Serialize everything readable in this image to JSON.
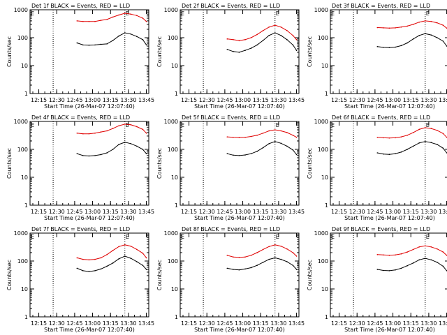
{
  "chart_data": {
    "type": "line",
    "panel_title_suffix": "BLACK = Events, RED = LLD",
    "ylabel": "Counts/sec",
    "xlabel": "Start Time (26-Mar-07 12:07:40)",
    "ylim": [
      1,
      1000
    ],
    "yscale": "log",
    "yticks": [
      "1",
      "10",
      "100",
      "1000"
    ],
    "xlim": [
      "12:07:40",
      "13:47:00"
    ],
    "xticks": [
      "12:15",
      "12:30",
      "12:45",
      "13:00",
      "13:15",
      "13:30",
      "13:45"
    ],
    "vertical_markers": [
      "12:27:00",
      "13:27:00"
    ],
    "marker_label": "E",
    "curve_times": [
      "12:47",
      "12:52",
      "12:57",
      "13:02",
      "13:07",
      "13:12",
      "13:17",
      "13:22",
      "13:27",
      "13:32",
      "13:37",
      "13:42",
      "13:45"
    ],
    "panels": [
      {
        "title": "Det 1f",
        "series": [
          {
            "name": "Events",
            "color": "#000000",
            "values": [
              65,
              55,
              54,
              55,
              58,
              60,
              80,
              115,
              150,
              135,
              110,
              85,
              55
            ]
          },
          {
            "name": "LLD",
            "color": "#e00000",
            "values": [
              400,
              380,
              380,
              380,
              420,
              450,
              550,
              650,
              750,
              700,
              620,
              500,
              380
            ]
          }
        ]
      },
      {
        "title": "Det 2f",
        "series": [
          {
            "name": "Events",
            "color": "#000000",
            "values": [
              38,
              32,
              30,
              35,
              42,
              55,
              80,
              120,
              150,
              120,
              85,
              55,
              35
            ]
          },
          {
            "name": "LLD",
            "color": "#e00000",
            "values": [
              90,
              85,
              78,
              85,
              100,
              130,
              180,
              240,
              280,
              240,
              180,
              120,
              85
            ]
          }
        ]
      },
      {
        "title": "Det 3f",
        "series": [
          {
            "name": "Events",
            "color": "#000000",
            "values": [
              48,
              45,
              44,
              46,
              52,
              65,
              90,
              120,
              140,
              125,
              100,
              75,
              50
            ]
          },
          {
            "name": "LLD",
            "color": "#e00000",
            "values": [
              230,
              225,
              220,
              225,
              240,
              260,
              300,
              360,
              400,
              380,
              340,
              280,
              220
            ]
          }
        ]
      },
      {
        "title": "Det 4f",
        "series": [
          {
            "name": "Events",
            "color": "#000000",
            "values": [
              70,
              60,
              58,
              60,
              65,
              75,
              100,
              150,
              180,
              160,
              130,
              100,
              70
            ]
          },
          {
            "name": "LLD",
            "color": "#e00000",
            "values": [
              380,
              360,
              360,
              380,
              420,
              460,
              560,
              700,
              800,
              760,
              650,
              520,
              380
            ]
          }
        ]
      },
      {
        "title": "Det 5f",
        "series": [
          {
            "name": "Events",
            "color": "#000000",
            "values": [
              70,
              62,
              60,
              63,
              70,
              85,
              115,
              160,
              190,
              165,
              130,
              95,
              65
            ]
          },
          {
            "name": "LLD",
            "color": "#e00000",
            "values": [
              280,
              270,
              265,
              270,
              290,
              320,
              380,
              460,
              500,
              460,
              400,
              320,
              270
            ]
          }
        ]
      },
      {
        "title": "Det 6f",
        "series": [
          {
            "name": "Events",
            "color": "#000000",
            "values": [
              75,
              68,
              66,
              70,
              80,
              100,
              130,
              170,
              190,
              175,
              150,
              110,
              75
            ]
          },
          {
            "name": "LLD",
            "color": "#e00000",
            "values": [
              270,
              260,
              255,
              260,
              280,
              320,
              400,
              520,
              600,
              560,
              480,
              370,
              270
            ]
          }
        ]
      },
      {
        "title": "Det 7f",
        "series": [
          {
            "name": "Events",
            "color": "#000000",
            "values": [
              55,
              45,
              42,
              45,
              52,
              65,
              85,
              120,
              150,
              125,
              95,
              70,
              50
            ]
          },
          {
            "name": "LLD",
            "color": "#e00000",
            "values": [
              130,
              115,
              110,
              115,
              130,
              170,
              240,
              330,
              380,
              340,
              260,
              190,
              130
            ]
          }
        ]
      },
      {
        "title": "Det 8f",
        "series": [
          {
            "name": "Events",
            "color": "#000000",
            "values": [
              55,
              50,
              48,
              52,
              58,
              70,
              90,
              115,
              130,
              115,
              95,
              70,
              50
            ]
          },
          {
            "name": "LLD",
            "color": "#e00000",
            "values": [
              160,
              140,
              135,
              140,
              160,
              200,
              260,
              330,
              380,
              340,
              270,
              200,
              150
            ]
          }
        ]
      },
      {
        "title": "Det 9f",
        "series": [
          {
            "name": "Events",
            "color": "#000000",
            "values": [
              50,
              46,
              45,
              48,
              55,
              68,
              85,
              110,
              125,
              110,
              90,
              65,
              45
            ]
          },
          {
            "name": "LLD",
            "color": "#e00000",
            "values": [
              170,
              165,
              160,
              165,
              180,
              210,
              260,
              320,
              350,
              320,
              270,
              210,
              160
            ]
          }
        ]
      }
    ]
  }
}
